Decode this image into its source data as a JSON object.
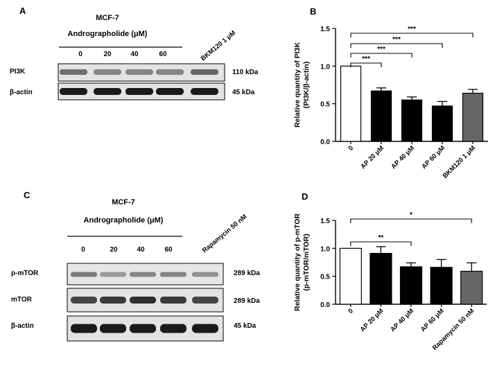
{
  "panels": {
    "A": {
      "letter": "A",
      "cell_line": "MCF-7",
      "treatment_label": "Andrographolide (μM)",
      "doses": [
        "0",
        "20",
        "40",
        "60"
      ],
      "control_label": "BKM120 1 μM",
      "rows": [
        {
          "label": "PI3K",
          "size": "110 kDa",
          "lanes": [
            0.55,
            0.45,
            0.45,
            0.45,
            0.6
          ]
        },
        {
          "label": "β-actin",
          "size": "45 kDa",
          "lanes": [
            0.95,
            0.95,
            0.95,
            0.95,
            0.95
          ]
        }
      ]
    },
    "C": {
      "letter": "C",
      "cell_line": "MCF-7",
      "treatment_label": "Andrographolide (μM)",
      "doses": [
        "0",
        "20",
        "40",
        "60"
      ],
      "control_label": "Rapamycin 50 nM",
      "rows": [
        {
          "label": "p-mTOR",
          "size": "289 kDa",
          "lanes": [
            0.5,
            0.35,
            0.45,
            0.45,
            0.4
          ]
        },
        {
          "label": "mTOR",
          "size": "289 kDa",
          "lanes": [
            0.75,
            0.8,
            0.85,
            0.8,
            0.75
          ]
        },
        {
          "label": "β-actin",
          "size": "45 kDa",
          "lanes": [
            0.95,
            0.95,
            0.95,
            0.95,
            0.95
          ]
        }
      ]
    },
    "B": {
      "letter": "B"
    },
    "D": {
      "letter": "D"
    }
  },
  "chart_data": [
    {
      "panel": "B",
      "type": "bar",
      "categories": [
        "0",
        "AP 20 μM",
        "AP 40 μM",
        "AP 60 μM",
        "BKM120 1 μM"
      ],
      "values": [
        1.0,
        0.67,
        0.55,
        0.47,
        0.64
      ],
      "errors": [
        0,
        0.04,
        0.04,
        0.06,
        0.05
      ],
      "bar_colors": [
        "#ffffff",
        "#000000",
        "#000000",
        "#000000",
        "#666666"
      ],
      "ylabel_lines": [
        "Relative quantity of PI3K",
        "(PI3K/β-actin)"
      ],
      "ylim": [
        0,
        1.5
      ],
      "yticks": [
        "0.0",
        "0.5",
        "1.0",
        "1.5"
      ],
      "significance": [
        {
          "from": 0,
          "to": 1,
          "label": "***"
        },
        {
          "from": 0,
          "to": 2,
          "label": "***"
        },
        {
          "from": 0,
          "to": 3,
          "label": "***"
        },
        {
          "from": 0,
          "to": 4,
          "label": "***"
        }
      ]
    },
    {
      "panel": "D",
      "type": "bar",
      "categories": [
        "0",
        "AP 20 μM",
        "AP 40 μM",
        "AP 60 μM",
        "Rapamycin 50 nM"
      ],
      "values": [
        1.0,
        0.91,
        0.67,
        0.66,
        0.59
      ],
      "errors": [
        0,
        0.12,
        0.07,
        0.14,
        0.15
      ],
      "bar_colors": [
        "#ffffff",
        "#000000",
        "#000000",
        "#000000",
        "#666666"
      ],
      "ylabel_lines": [
        "Relative quantity of p-mTOR",
        "(p-mTOR/mTOR)"
      ],
      "ylim": [
        0,
        1.5
      ],
      "yticks": [
        "0.0",
        "0.5",
        "1.0",
        "1.5"
      ],
      "significance": [
        {
          "from": 0,
          "to": 2,
          "label": "**"
        },
        {
          "from": 0,
          "to": 4,
          "label": "*"
        }
      ]
    }
  ]
}
